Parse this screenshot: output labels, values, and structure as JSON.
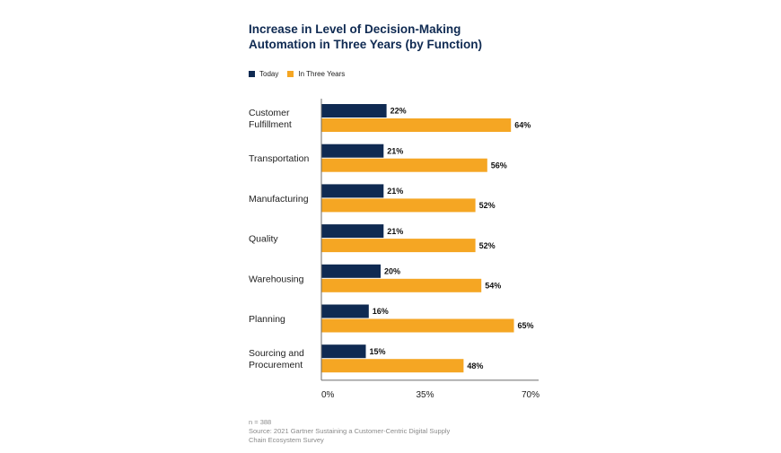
{
  "chart_data": {
    "type": "bar",
    "orientation": "horizontal",
    "title": [
      "Increase in Level of Decision-Making",
      "Automation in Three Years (by Function)"
    ],
    "categories": [
      [
        "Customer",
        "Fulfillment"
      ],
      [
        "Transportation"
      ],
      [
        "Manufacturing"
      ],
      [
        "Quality"
      ],
      [
        "Warehousing"
      ],
      [
        "Planning"
      ],
      [
        "Sourcing and",
        "Procurement"
      ]
    ],
    "series": [
      {
        "name": "Today",
        "color": "#0f2a52",
        "values": [
          22,
          21,
          21,
          21,
          20,
          16,
          15
        ],
        "labels": [
          "22%",
          "21%",
          "21%",
          "21%",
          "20%",
          "16%",
          "15%"
        ]
      },
      {
        "name": "In Three Years",
        "color": "#f5a623",
        "values": [
          64,
          56,
          52,
          52,
          54,
          65,
          48
        ],
        "labels": [
          "64%",
          "56%",
          "52%",
          "52%",
          "54%",
          "65%",
          "48%"
        ]
      }
    ],
    "xlim": [
      0,
      70
    ],
    "xticks": [
      0,
      35,
      70
    ],
    "xtick_labels": [
      "0%",
      "35%",
      "70%"
    ],
    "legend_position": "top-left",
    "grid": false
  },
  "footnote": {
    "n": "n = 388",
    "source_line1": "Source: 2021 Gartner Sustaining a Customer-Centric Digital Supply",
    "source_line2": "Chain Ecosystem Survey"
  }
}
